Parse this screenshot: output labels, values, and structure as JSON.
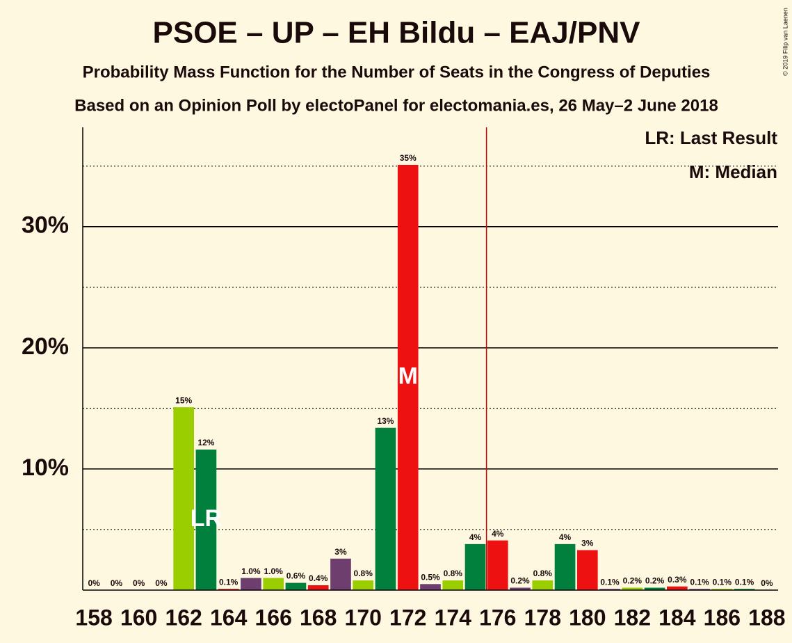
{
  "chart_data": {
    "type": "bar",
    "title": "PSOE – UP – EH Bildu – EAJ/PNV",
    "subtitle": "Probability Mass Function for the Number of Seats in the Congress of Deputies",
    "source": "Based on an Opinion Poll by electoPanel for electomania.es, 26 May–2 June 2018",
    "copyright": "© 2019 Filip van Laenen",
    "x": [
      158,
      159,
      160,
      161,
      162,
      163,
      164,
      165,
      166,
      167,
      168,
      169,
      170,
      171,
      172,
      173,
      174,
      175,
      176,
      177,
      178,
      179,
      180,
      181,
      182,
      183,
      184,
      185,
      186,
      187,
      188
    ],
    "values": [
      0,
      0,
      0,
      0,
      15.1,
      11.6,
      0.1,
      1.0,
      1.0,
      0.6,
      0.4,
      2.6,
      0.8,
      13.4,
      35.1,
      0.5,
      0.8,
      3.8,
      4.1,
      0.2,
      0.8,
      3.8,
      3.3,
      0.1,
      0.2,
      0.2,
      0.3,
      0.1,
      0.1,
      0.1,
      0
    ],
    "value_labels": [
      "0%",
      "0%",
      "0%",
      "0%",
      "15%",
      "12%",
      "0.1%",
      "1.0%",
      "1.0%",
      "0.6%",
      "0.4%",
      "3%",
      "0.8%",
      "13%",
      "35%",
      "0.5%",
      "0.8%",
      "4%",
      "4%",
      "0.2%",
      "0.8%",
      "4%",
      "3%",
      "0.1%",
      "0.2%",
      "0.2%",
      "0.3%",
      "0.1%",
      "0.1%",
      "0.1%",
      "0%"
    ],
    "colors": [
      "#9ace00",
      "#00803c",
      "#ee1111",
      "#6e3f6e"
    ],
    "xlim": [
      157.5,
      188.5
    ],
    "xticks": [
      158,
      160,
      162,
      164,
      166,
      168,
      170,
      172,
      174,
      176,
      178,
      180,
      182,
      184,
      186,
      188
    ],
    "ylim": [
      0,
      38.2
    ],
    "yticks": [
      {
        "value": 10,
        "label": "10%"
      },
      {
        "value": 20,
        "label": "20%"
      },
      {
        "value": 30,
        "label": "30%"
      }
    ],
    "minor_gridlines": [
      5,
      15,
      25,
      35
    ],
    "majority_line": 175.5,
    "majority_color": "#cc0000",
    "annotations": [
      {
        "text": "LR",
        "x": 163
      },
      {
        "text": "M",
        "x": 172
      }
    ],
    "legend": [
      "LR: Last Result",
      "M: Median"
    ]
  }
}
